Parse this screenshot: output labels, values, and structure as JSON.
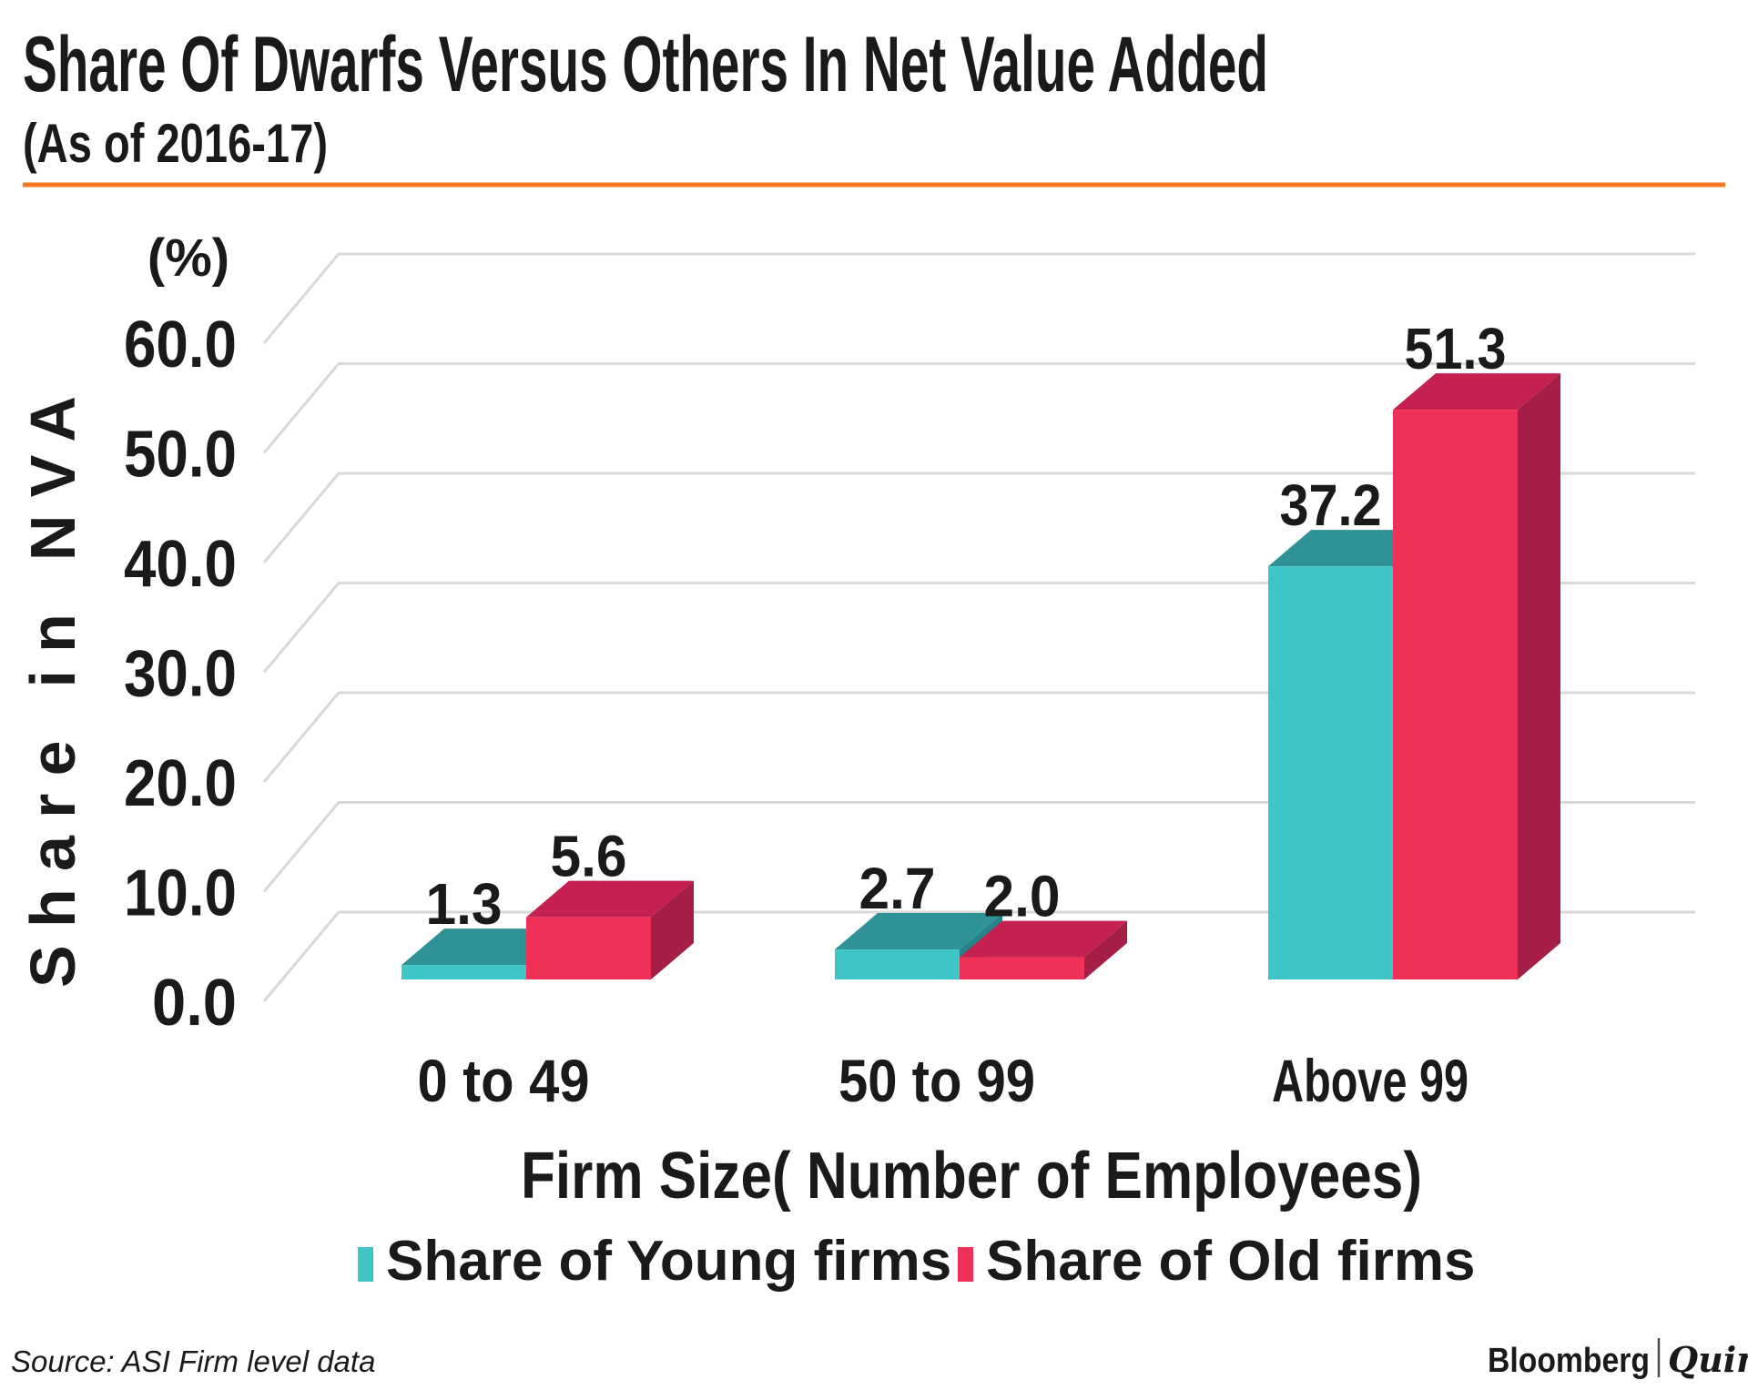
{
  "header": {
    "title": "Share Of Dwarfs Versus Others In Net Value Added",
    "subtitle": "(As of 2016-17)",
    "accent_color": "#F4771F"
  },
  "chart_data": {
    "type": "bar",
    "projection": "3d",
    "title": "Share Of Dwarfs Versus Others In Net Value Added (As of 2016-17)",
    "categories": [
      "0 to 49",
      "50 to 99",
      "Above 99"
    ],
    "series": [
      {
        "name": "Share of Young firms",
        "values": [
          1.3,
          2.7,
          37.2
        ],
        "color": "#3FC4C8",
        "color_top": "#2F9297",
        "color_side": "#27838A"
      },
      {
        "name": "Share of Old firms",
        "values": [
          5.6,
          2.0,
          51.3
        ],
        "color": "#EF3058",
        "color_top": "#C42150",
        "color_side": "#A51E46"
      }
    ],
    "data_labels": [
      [
        "1.3",
        "2.7",
        "37.2"
      ],
      [
        "5.6",
        "2.0",
        "51.3"
      ]
    ],
    "xlabel": "Firm Size( Number of Employees)",
    "ylabel": "Share in NVA",
    "y_unit": "(%)",
    "ylim": [
      0,
      60
    ],
    "yticks": [
      0,
      10,
      20,
      30,
      40,
      50,
      60
    ],
    "ytick_labels": [
      "0.0",
      "10.0",
      "20.0",
      "30.0",
      "40.0",
      "50.0",
      "60.0"
    ],
    "grid": true,
    "grid_color": "#D9D9D9",
    "legend_position": "bottom",
    "text_color": "#1a1a1a"
  },
  "footer": {
    "source": "Source: ASI Firm level data",
    "brand_left": "Bloomberg",
    "brand_right": "Quint"
  }
}
